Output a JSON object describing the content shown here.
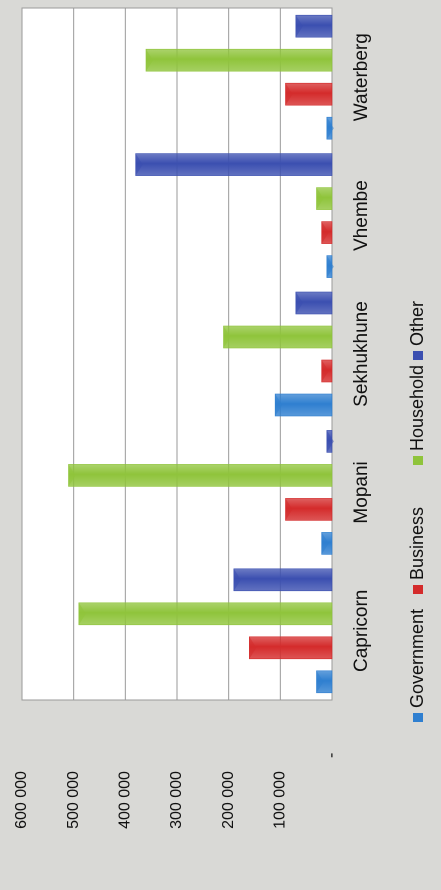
{
  "chart_data": {
    "type": "bar",
    "orientation": "rotated-90-counterclockwise",
    "categories": [
      "Capricorn",
      "Mopani",
      "Sekhukhune",
      "Vhembe",
      "Waterberg"
    ],
    "series": [
      {
        "name": "Government",
        "color": "#2f7fd0",
        "values": [
          30000,
          20000,
          110000,
          10000,
          10000
        ]
      },
      {
        "name": "Business",
        "color": "#d42b2b",
        "values": [
          160000,
          90000,
          20000,
          20000,
          90000
        ]
      },
      {
        "name": "Household",
        "color": "#8fc43b",
        "values": [
          490000,
          510000,
          210000,
          30000,
          360000
        ]
      },
      {
        "name": "Other",
        "color": "#3b4fb0",
        "values": [
          190000,
          10000,
          70000,
          380000,
          70000
        ]
      }
    ],
    "ylim": [
      0,
      600000
    ],
    "yticks": [
      0,
      100000,
      200000,
      300000,
      400000,
      500000,
      600000
    ],
    "ytick_labels": [
      "-",
      "100 000",
      "200 000",
      "300 000",
      "400 000",
      "500 000",
      "600 000"
    ],
    "grid": true,
    "legend": "bottom",
    "title": "",
    "xlabel": "",
    "ylabel": ""
  }
}
